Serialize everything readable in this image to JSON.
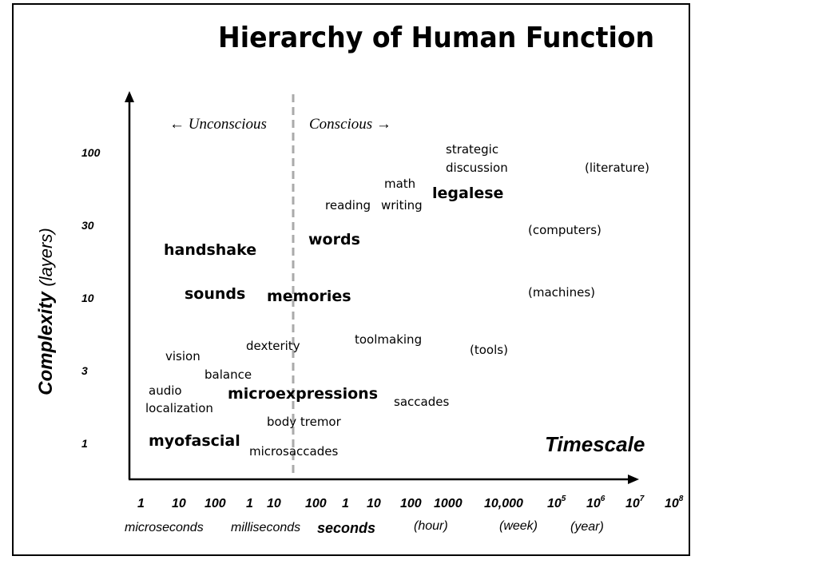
{
  "title": "Hierarchy of Human Function",
  "y_axis": {
    "label": "Complexity",
    "label_sub": "(layers)",
    "ticks": [
      "100",
      "30",
      "10",
      "3",
      "1"
    ]
  },
  "x_axis": {
    "label": "Timescale",
    "ticks": {
      "us_1": "1",
      "us_10": "10",
      "us_100": "100",
      "ms_1": "1",
      "ms_10": "10",
      "ms_100": "100",
      "s_1": "1",
      "s_10": "10",
      "s_100": "100",
      "s_1000": "1000",
      "s_10000": "10,000",
      "e5_base": "10",
      "e5_exp": "5",
      "e6_base": "10",
      "e6_exp": "6",
      "e7_base": "10",
      "e7_exp": "7",
      "e8_base": "10",
      "e8_exp": "8"
    },
    "units": {
      "microseconds": "microseconds",
      "milliseconds": "milliseconds",
      "seconds": "seconds",
      "hour": "(hour)",
      "week": "(week)",
      "year": "(year)"
    }
  },
  "divider": {
    "unconscious": "← Unconscious",
    "conscious": "Conscious →"
  },
  "items": {
    "strategic_1": "strategic",
    "strategic_2": "discussion",
    "literature": "(literature)",
    "math": "math",
    "legalese": "legalese",
    "reading": "reading",
    "writing": "writing",
    "computers": "(computers)",
    "words": "words",
    "handshake": "handshake",
    "sounds": "sounds",
    "memories": "memories",
    "machines": "(machines)",
    "toolmaking": "toolmaking",
    "dexterity": "dexterity",
    "tools": "(tools)",
    "vision": "vision",
    "balance": "balance",
    "audio_1": "audio",
    "audio_2": "localization",
    "microexpressions": "microexpressions",
    "saccades": "saccades",
    "body_tremor": "body tremor",
    "myofascial": "myofascial",
    "microsaccades": "microsaccades"
  }
}
